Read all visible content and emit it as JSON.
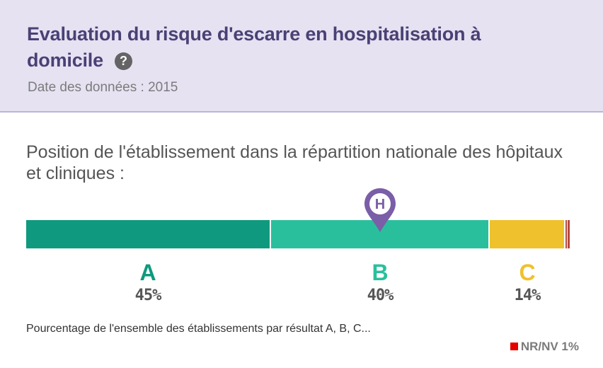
{
  "header": {
    "title": "Evaluation du risque d'escarre en hospitalisation à domicile",
    "help_icon": "question-circle-icon",
    "date": "Date des données : 2015"
  },
  "main": {
    "subtitle": "Position de l'établissement dans la répartition nationale des hôpitaux et cliniques :",
    "marker_letter": "H",
    "marker_position": "B",
    "segments": [
      {
        "grade": "A",
        "percent": 45,
        "percent_label": "45%",
        "color": "#0f9a7f"
      },
      {
        "grade": "B",
        "percent": 40,
        "percent_label": "40%",
        "color": "#2abf9c"
      },
      {
        "grade": "C",
        "percent": 14,
        "percent_label": "14%",
        "color": "#efc12d"
      }
    ],
    "nr": {
      "label": "NR/NV 1%",
      "percent": 1,
      "color": "#e60000"
    },
    "caption": "Pourcentage de l'ensemble des établissements par résultat A, B, C..."
  }
}
